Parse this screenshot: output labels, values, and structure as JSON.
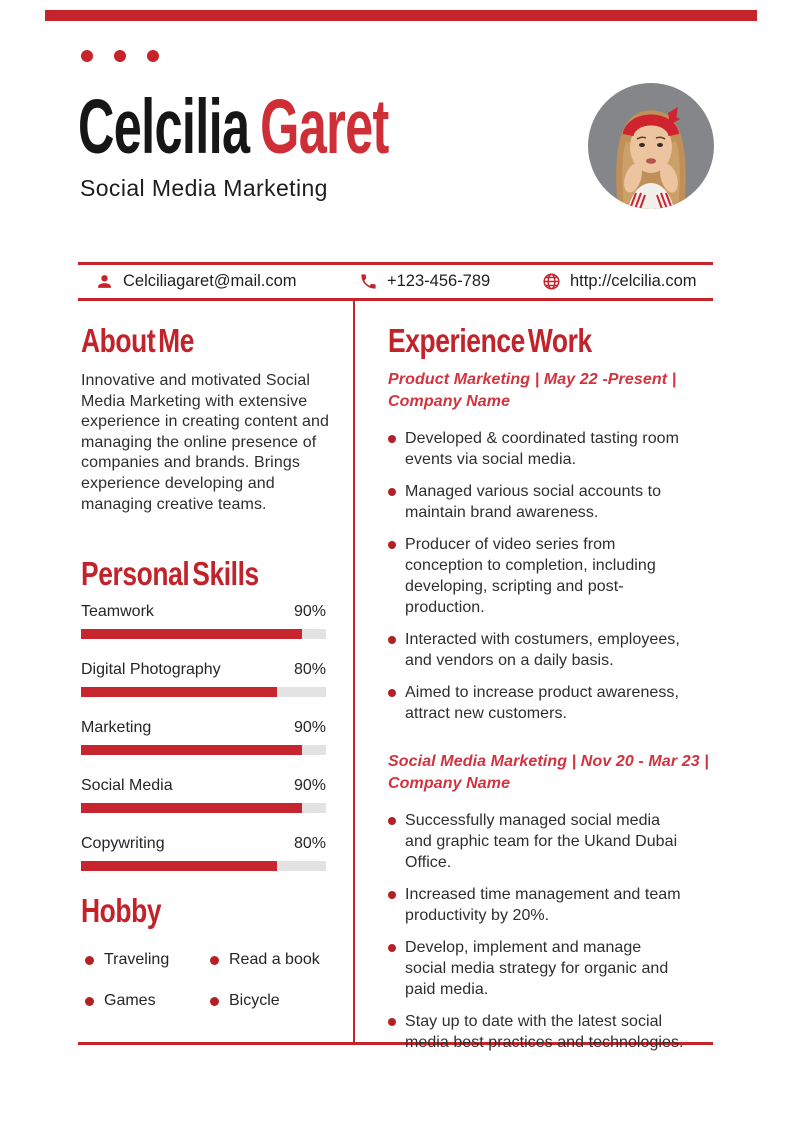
{
  "colors": {
    "accent": "#c5242b",
    "name_red": "#ce2f37",
    "job_title_red": "#d2333e",
    "body_text": "#2e2e2e",
    "bar_track": "#e3e3e3",
    "photo_background": "#85868a"
  },
  "header": {
    "first_name": "Celcilia",
    "last_name": "Garet",
    "subtitle": "Social Media Marketing"
  },
  "contact": {
    "email": {
      "icon": "user-icon",
      "value": "Celciliagaret@mail.com"
    },
    "phone": {
      "icon": "phone-icon",
      "value": "+123-456-789"
    },
    "website": {
      "icon": "globe-icon",
      "value": "http://celcilia.com"
    }
  },
  "about": {
    "title": "About Me",
    "text": "Innovative and motivated Social Media Marketing with extensive experience in creating content and managing the online presence of companies and brands. Brings experience developing and managing creative teams."
  },
  "skills": {
    "title": "Personal Skills",
    "items": [
      {
        "label": "Teamwork",
        "percent_label": "90%",
        "value": 90
      },
      {
        "label": "Digital Photography",
        "percent_label": "80%",
        "value": 80
      },
      {
        "label": "Marketing",
        "percent_label": "90%",
        "value": 90
      },
      {
        "label": "Social Media",
        "percent_label": "90%",
        "value": 90
      },
      {
        "label": "Copywriting",
        "percent_label": "80%",
        "value": 80
      }
    ]
  },
  "hobby": {
    "title": "Hobby",
    "items": [
      "Traveling",
      "Read a book",
      "Games",
      "Bicycle"
    ]
  },
  "experience": {
    "title": "Experience Work",
    "jobs": [
      {
        "heading": "Product Marketing | May 22 -Present | Company Name",
        "bullets": [
          "Developed & coordinated tasting room events via social media.",
          "Managed various social accounts to maintain brand awareness.",
          "Producer of video series from conception to completion, including developing, scripting and post-production.",
          "Interacted with costumers, employees, and vendors on a daily basis.",
          "Aimed to increase product awareness, attract new customers."
        ]
      },
      {
        "heading": "Social Media Marketing | Nov 20 - Mar 23 | Company Name",
        "bullets": [
          "Successfully managed social media and graphic team for the Ukand Dubai Office.",
          "Increased time management and team productivity by 20%.",
          "Develop, implement and manage social media strategy for organic and paid media.",
          "Stay up to date with the latest social media best practices and technologies."
        ]
      }
    ]
  }
}
